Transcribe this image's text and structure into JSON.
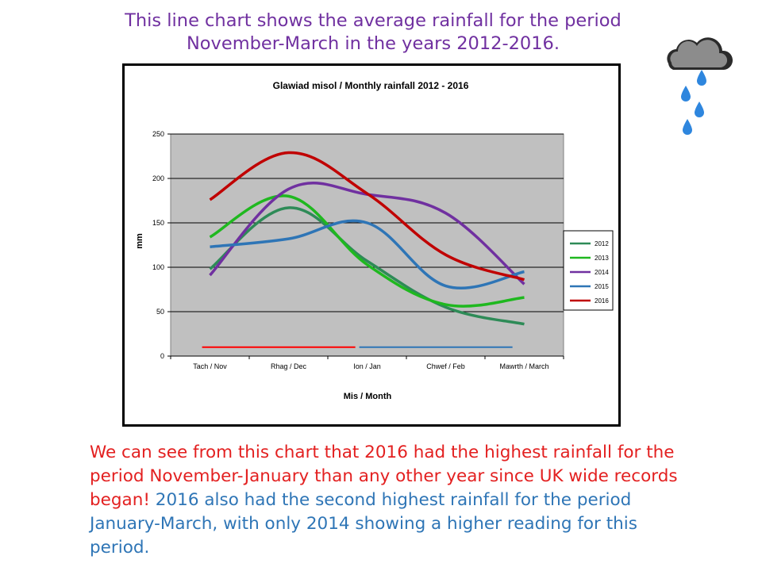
{
  "intro": {
    "line1": "This line chart shows the average rainfall for the period",
    "line2": "November-March in the years 2012-2016."
  },
  "summary": {
    "red_text": "We can see from this chart that 2016 had the highest rainfall for the period November-January than any other year since UK wide records began!",
    "blue_text": "2016 also had the second highest rainfall for the period January-March, with only 2014 showing a higher reading for this period."
  },
  "colors": {
    "intro_text": "#7030a0",
    "summary_red": "#e32020",
    "summary_blue": "#2e75b6",
    "plot_background": "#c0c0c0",
    "cloud": "#8c8c8c",
    "rain": "#2e86de"
  },
  "icons": [
    "rain-cloud-icon",
    "raindrop-icon"
  ],
  "chart_data": {
    "type": "line",
    "title": "Glawiad misol / Monthly rainfall 2012 - 2016",
    "xlabel": "Mis / Month",
    "ylabel": "mm",
    "categories": [
      "Tach / Nov",
      "Rhag / Dec",
      "Ion / Jan",
      "Chwef / Feb",
      "Mawrth / March"
    ],
    "ylim": [
      0,
      250
    ],
    "yticks": [
      0,
      50,
      100,
      150,
      200,
      250
    ],
    "grid": true,
    "smoothed": true,
    "legend_position": "right",
    "series": [
      {
        "name": "2012",
        "color": "#2e8b57",
        "values": [
          98,
          167,
          107,
          55,
          36
        ]
      },
      {
        "name": "2013",
        "color": "#1fb81f",
        "values": [
          134,
          180,
          103,
          58,
          66
        ]
      },
      {
        "name": "2014",
        "color": "#7030a0",
        "values": [
          91,
          188,
          182,
          161,
          81
        ]
      },
      {
        "name": "2015",
        "color": "#2e75b6",
        "values": [
          123,
          132,
          150,
          79,
          95
        ]
      },
      {
        "name": "2016",
        "color": "#c00000",
        "values": [
          176,
          229,
          183,
          114,
          86
        ]
      }
    ],
    "annotations": [
      {
        "type": "segment",
        "color": "#ff0000",
        "x_from": "Tach / Nov",
        "x_to": "Ion / Jan",
        "value": 10
      },
      {
        "type": "segment",
        "color": "#2e75b6",
        "x_from": "Ion / Jan",
        "x_to": "Mawrth / March",
        "value": 10
      }
    ]
  }
}
